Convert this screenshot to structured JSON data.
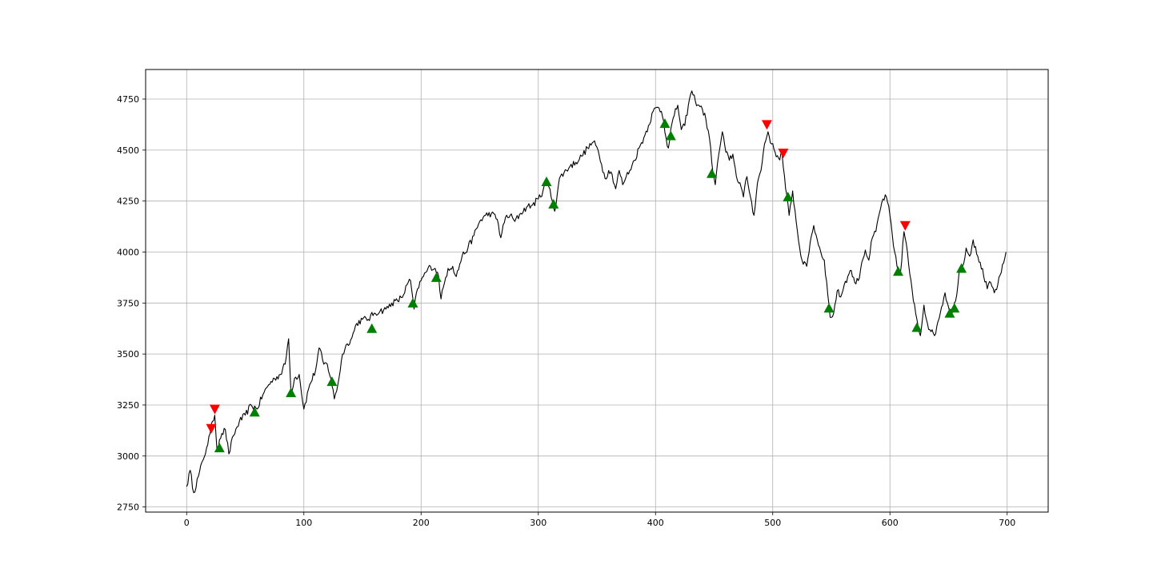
{
  "chart_data": {
    "type": "line",
    "title": "",
    "xlabel": "",
    "ylabel": "",
    "xlim": [
      -35,
      735
    ],
    "ylim": [
      2725,
      4895
    ],
    "grid": true,
    "x_ticks": [
      0,
      100,
      200,
      300,
      400,
      500,
      600,
      700
    ],
    "y_ticks": [
      2750,
      3000,
      3250,
      3500,
      3750,
      4000,
      4250,
      4500,
      4750
    ],
    "line_color": "#000000",
    "series": [
      {
        "type": "line",
        "anchors": [
          [
            0,
            2850
          ],
          [
            3,
            2930
          ],
          [
            6,
            2820
          ],
          [
            10,
            2900
          ],
          [
            14,
            2980
          ],
          [
            17,
            3040
          ],
          [
            20,
            3110
          ],
          [
            22,
            3170
          ],
          [
            24,
            3200
          ],
          [
            26,
            3020
          ],
          [
            28,
            3080
          ],
          [
            30,
            3110
          ],
          [
            33,
            3130
          ],
          [
            36,
            3010
          ],
          [
            40,
            3100
          ],
          [
            45,
            3170
          ],
          [
            50,
            3200
          ],
          [
            55,
            3250
          ],
          [
            60,
            3230
          ],
          [
            65,
            3300
          ],
          [
            70,
            3350
          ],
          [
            75,
            3380
          ],
          [
            80,
            3400
          ],
          [
            84,
            3450
          ],
          [
            87,
            3575
          ],
          [
            89,
            3310
          ],
          [
            92,
            3380
          ],
          [
            96,
            3400
          ],
          [
            100,
            3230
          ],
          [
            105,
            3350
          ],
          [
            110,
            3420
          ],
          [
            113,
            3530
          ],
          [
            117,
            3450
          ],
          [
            120,
            3450
          ],
          [
            123,
            3380
          ],
          [
            126,
            3280
          ],
          [
            129,
            3350
          ],
          [
            133,
            3500
          ],
          [
            137,
            3550
          ],
          [
            141,
            3580
          ],
          [
            145,
            3650
          ],
          [
            150,
            3670
          ],
          [
            155,
            3670
          ],
          [
            160,
            3700
          ],
          [
            165,
            3710
          ],
          [
            170,
            3720
          ],
          [
            175,
            3750
          ],
          [
            180,
            3760
          ],
          [
            185,
            3790
          ],
          [
            188,
            3840
          ],
          [
            191,
            3860
          ],
          [
            194,
            3720
          ],
          [
            197,
            3820
          ],
          [
            200,
            3860
          ],
          [
            204,
            3900
          ],
          [
            208,
            3930
          ],
          [
            212,
            3920
          ],
          [
            215,
            3880
          ],
          [
            217,
            3770
          ],
          [
            220,
            3850
          ],
          [
            223,
            3920
          ],
          [
            227,
            3930
          ],
          [
            230,
            3880
          ],
          [
            235,
            3980
          ],
          [
            240,
            4020
          ],
          [
            245,
            4080
          ],
          [
            250,
            4150
          ],
          [
            255,
            4180
          ],
          [
            260,
            4190
          ],
          [
            265,
            4160
          ],
          [
            268,
            4070
          ],
          [
            272,
            4170
          ],
          [
            276,
            4180
          ],
          [
            280,
            4150
          ],
          [
            285,
            4190
          ],
          [
            290,
            4220
          ],
          [
            295,
            4230
          ],
          [
            300,
            4260
          ],
          [
            304,
            4300
          ],
          [
            306,
            4350
          ],
          [
            309,
            4320
          ],
          [
            312,
            4250
          ],
          [
            314,
            4200
          ],
          [
            318,
            4360
          ],
          [
            322,
            4390
          ],
          [
            327,
            4420
          ],
          [
            332,
            4440
          ],
          [
            337,
            4470
          ],
          [
            342,
            4510
          ],
          [
            347,
            4540
          ],
          [
            351,
            4500
          ],
          [
            354,
            4430
          ],
          [
            357,
            4360
          ],
          [
            360,
            4400
          ],
          [
            363,
            4380
          ],
          [
            366,
            4310
          ],
          [
            369,
            4400
          ],
          [
            372,
            4330
          ],
          [
            375,
            4370
          ],
          [
            378,
            4400
          ],
          [
            382,
            4450
          ],
          [
            386,
            4510
          ],
          [
            390,
            4560
          ],
          [
            394,
            4620
          ],
          [
            398,
            4690
          ],
          [
            402,
            4710
          ],
          [
            405,
            4690
          ],
          [
            407,
            4640
          ],
          [
            409,
            4560
          ],
          [
            411,
            4510
          ],
          [
            413,
            4600
          ],
          [
            416,
            4670
          ],
          [
            419,
            4720
          ],
          [
            422,
            4600
          ],
          [
            425,
            4620
          ],
          [
            428,
            4720
          ],
          [
            431,
            4790
          ],
          [
            434,
            4740
          ],
          [
            437,
            4720
          ],
          [
            440,
            4700
          ],
          [
            443,
            4650
          ],
          [
            446,
            4560
          ],
          [
            448,
            4440
          ],
          [
            451,
            4330
          ],
          [
            454,
            4480
          ],
          [
            457,
            4590
          ],
          [
            460,
            4490
          ],
          [
            463,
            4450
          ],
          [
            466,
            4480
          ],
          [
            469,
            4370
          ],
          [
            472,
            4340
          ],
          [
            475,
            4270
          ],
          [
            478,
            4370
          ],
          [
            481,
            4270
          ],
          [
            484,
            4180
          ],
          [
            487,
            4340
          ],
          [
            490,
            4400
          ],
          [
            493,
            4530
          ],
          [
            496,
            4590
          ],
          [
            499,
            4530
          ],
          [
            502,
            4490
          ],
          [
            505,
            4460
          ],
          [
            508,
            4480
          ],
          [
            511,
            4310
          ],
          [
            514,
            4180
          ],
          [
            517,
            4300
          ],
          [
            520,
            4150
          ],
          [
            523,
            4020
          ],
          [
            526,
            3940
          ],
          [
            529,
            3930
          ],
          [
            532,
            4050
          ],
          [
            535,
            4130
          ],
          [
            538,
            4060
          ],
          [
            541,
            4000
          ],
          [
            544,
            3960
          ],
          [
            547,
            3790
          ],
          [
            549,
            3680
          ],
          [
            552,
            3700
          ],
          [
            555,
            3810
          ],
          [
            558,
            3780
          ],
          [
            561,
            3840
          ],
          [
            564,
            3880
          ],
          [
            567,
            3910
          ],
          [
            570,
            3850
          ],
          [
            573,
            3860
          ],
          [
            576,
            3950
          ],
          [
            579,
            4010
          ],
          [
            582,
            3960
          ],
          [
            585,
            4070
          ],
          [
            588,
            4100
          ],
          [
            591,
            4190
          ],
          [
            594,
            4260
          ],
          [
            597,
            4270
          ],
          [
            600,
            4180
          ],
          [
            603,
            4030
          ],
          [
            606,
            3930
          ],
          [
            609,
            3900
          ],
          [
            612,
            4100
          ],
          [
            614,
            4040
          ],
          [
            617,
            3890
          ],
          [
            620,
            3760
          ],
          [
            623,
            3670
          ],
          [
            626,
            3590
          ],
          [
            629,
            3740
          ],
          [
            632,
            3650
          ],
          [
            635,
            3610
          ],
          [
            638,
            3590
          ],
          [
            641,
            3660
          ],
          [
            644,
            3730
          ],
          [
            647,
            3800
          ],
          [
            650,
            3730
          ],
          [
            653,
            3700
          ],
          [
            656,
            3760
          ],
          [
            659,
            3900
          ],
          [
            662,
            3930
          ],
          [
            665,
            4020
          ],
          [
            668,
            3980
          ],
          [
            671,
            4060
          ],
          [
            674,
            3990
          ],
          [
            677,
            3950
          ],
          [
            680,
            3880
          ],
          [
            683,
            3820
          ],
          [
            686,
            3850
          ],
          [
            689,
            3800
          ],
          [
            692,
            3840
          ],
          [
            695,
            3900
          ],
          [
            698,
            3970
          ],
          [
            699,
            4000
          ]
        ]
      },
      {
        "name": "",
        "type": "scatter",
        "marker": "triangle-up",
        "color": "#008000",
        "points": [
          [
            28,
            3040
          ],
          [
            58,
            3215
          ],
          [
            89,
            3310
          ],
          [
            124,
            3365
          ],
          [
            158,
            3625
          ],
          [
            193,
            3750
          ],
          [
            213,
            3875
          ],
          [
            307,
            4345
          ],
          [
            313,
            4235
          ],
          [
            408,
            4630
          ],
          [
            413,
            4570
          ],
          [
            448,
            4385
          ],
          [
            513,
            4270
          ],
          [
            548,
            3725
          ],
          [
            607,
            3905
          ],
          [
            623,
            3630
          ],
          [
            651,
            3700
          ],
          [
            655,
            3725
          ],
          [
            661,
            3920
          ]
        ]
      },
      {
        "name": "",
        "type": "scatter",
        "marker": "triangle-down",
        "color": "#ff0000",
        "points": [
          [
            21,
            3135
          ],
          [
            24,
            3230
          ],
          [
            495,
            4625
          ],
          [
            509,
            4485
          ],
          [
            613,
            4130
          ]
        ]
      }
    ]
  }
}
